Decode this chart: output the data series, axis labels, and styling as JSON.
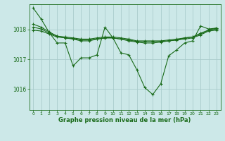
{
  "bg_color": "#cce8e8",
  "line_color": "#1a6b1a",
  "grid_color": "#aacccc",
  "xlabel": "Graphe pression niveau de la mer (hPa)",
  "xlabel_color": "#1a6b1a",
  "yticks": [
    1016,
    1017,
    1018
  ],
  "xticks": [
    0,
    1,
    2,
    3,
    4,
    5,
    6,
    7,
    8,
    9,
    10,
    11,
    12,
    13,
    14,
    15,
    16,
    17,
    18,
    19,
    20,
    21,
    22,
    23
  ],
  "ylim": [
    1015.3,
    1018.85
  ],
  "xlim": [
    -0.5,
    23.5
  ],
  "lines": [
    [
      1018.72,
      1018.35,
      1017.9,
      1017.55,
      1017.55,
      1016.78,
      1017.05,
      1017.05,
      1017.15,
      1018.08,
      1017.72,
      1017.22,
      1017.15,
      1016.65,
      1016.05,
      1015.82,
      1016.18,
      1017.12,
      1017.32,
      1017.55,
      1017.62,
      1018.12,
      1018.02,
      1018.05
    ],
    [
      1018.18,
      1018.08,
      1017.92,
      1017.78,
      1017.72,
      1017.68,
      1017.62,
      1017.62,
      1017.68,
      1017.72,
      1017.72,
      1017.68,
      1017.62,
      1017.58,
      1017.55,
      1017.55,
      1017.58,
      1017.62,
      1017.65,
      1017.72,
      1017.75,
      1017.88,
      1017.98,
      1018.05
    ],
    [
      1018.08,
      1018.02,
      1017.88,
      1017.78,
      1017.75,
      1017.72,
      1017.68,
      1017.68,
      1017.72,
      1017.75,
      1017.75,
      1017.72,
      1017.68,
      1017.62,
      1017.62,
      1017.62,
      1017.62,
      1017.65,
      1017.68,
      1017.72,
      1017.75,
      1017.85,
      1017.98,
      1018.02
    ],
    [
      1017.98,
      1017.95,
      1017.85,
      1017.75,
      1017.72,
      1017.7,
      1017.65,
      1017.65,
      1017.68,
      1017.72,
      1017.72,
      1017.68,
      1017.65,
      1017.6,
      1017.6,
      1017.6,
      1017.6,
      1017.62,
      1017.65,
      1017.68,
      1017.72,
      1017.82,
      1017.95,
      1017.98
    ]
  ]
}
